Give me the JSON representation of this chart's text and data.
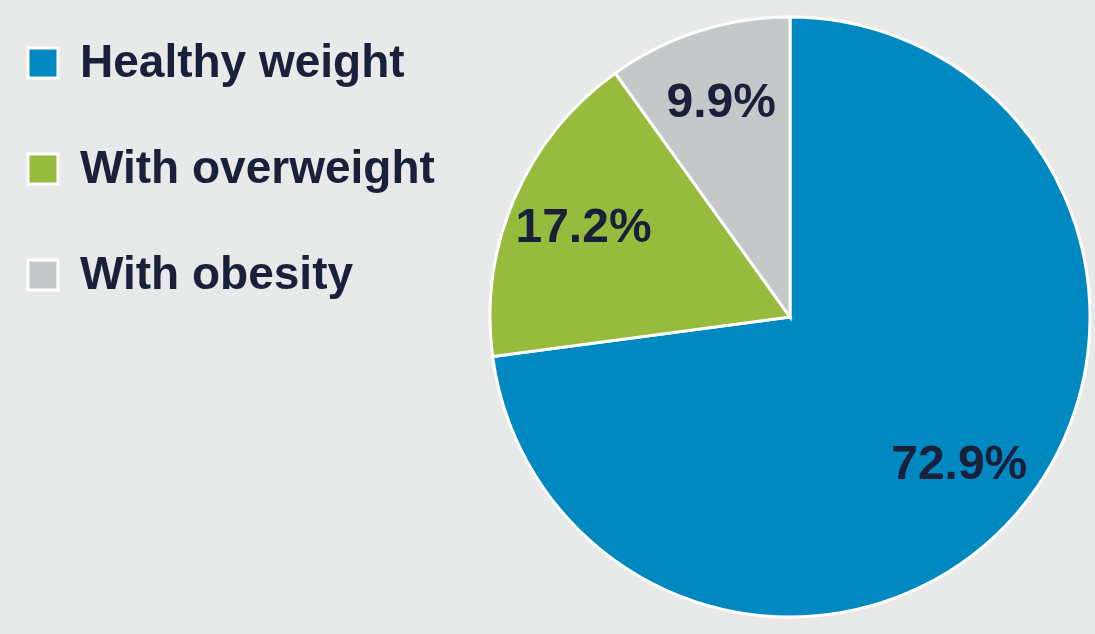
{
  "chart_data": {
    "type": "pie",
    "categories": [
      "Healthy weight",
      "With overweight",
      "With obesity"
    ],
    "values": [
      72.9,
      17.2,
      9.9
    ],
    "colors": [
      "#0088c0",
      "#97bb3c",
      "#c4c8c9"
    ],
    "value_labels": [
      "72.9%",
      "17.2%",
      "9.9%"
    ],
    "legend": "left"
  }
}
